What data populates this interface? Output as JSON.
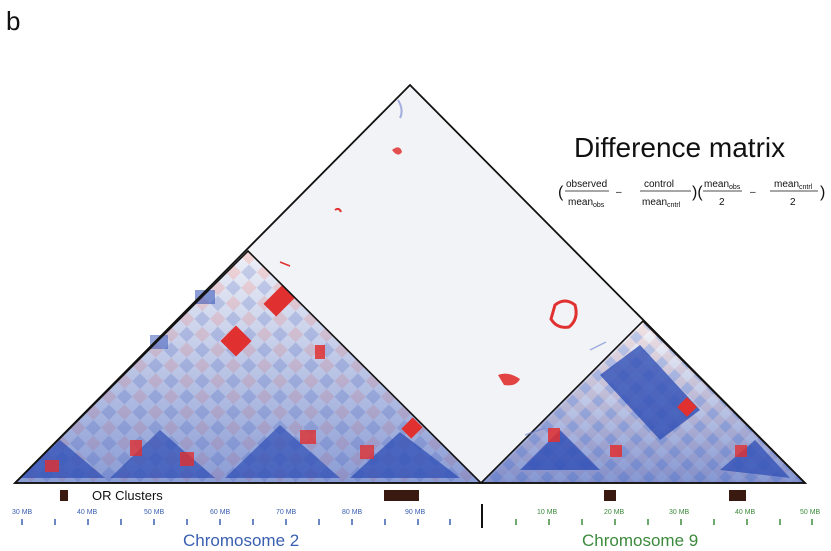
{
  "panel_label": "b",
  "title": "Difference matrix",
  "formula": {
    "open_paren": "(",
    "observed": "observed",
    "mean_obs": "mean",
    "mean_obs_sub": "obs",
    "minus1": "–",
    "control": "control",
    "mean_cntrl": "mean",
    "mean_cntrl_sub": "cntrl",
    "mid_parens": ")(",
    "mean_obs2": "mean",
    "mean_obs2_sub": "obs",
    "two_a": "2",
    "minus2": "–",
    "mean_cntrl2": "mean",
    "mean_cntrl2_sub": "cntrl",
    "two_b": "2",
    "close_paren": ")"
  },
  "or_clusters_label": "OR Clusters",
  "chromosome_2": {
    "name": "Chromosome 2",
    "ticks": [
      "30 MB",
      "40 MB",
      "50 MB",
      "60 MB",
      "70 MB",
      "80 MB",
      "90 MB"
    ],
    "color": "#3a5fb0"
  },
  "chromosome_9": {
    "name": "Chromosome 9",
    "ticks": [
      "10 MB",
      "20 MB",
      "30 MB",
      "40 MB",
      "50 MB"
    ],
    "color": "#3c8a3c"
  },
  "colors": {
    "enriched": "#e03030",
    "depleted": "#2f4fb5",
    "neutral": "#f2f3f6",
    "cluster_bar": "#3a1a10"
  }
}
